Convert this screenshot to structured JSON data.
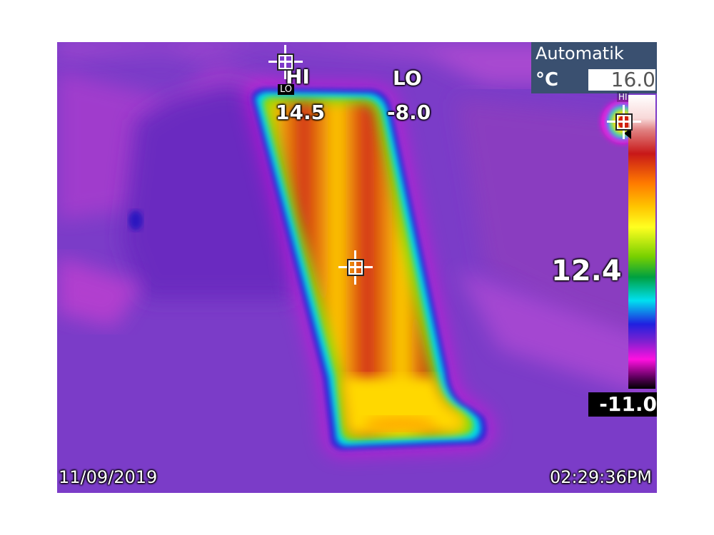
{
  "camera": {
    "mode": "Automatik",
    "unit": "°C",
    "scale_max": "16.0",
    "scale_min": "-11.0",
    "hi_title": "HI",
    "hi_value": "14.5",
    "lo_title": "LO",
    "lo_value": "-8.0",
    "center_value": "12.4",
    "palette_hi_tag": "HI",
    "lo_tag": "LO",
    "date": "11/09/2019",
    "time": "02:29:36PM"
  },
  "icons": {
    "crosshair": "crosshair-icon",
    "marker": "triangle-marker-icon"
  },
  "colors": {
    "background": "#7a3fc6",
    "mode_box": "#3a5070",
    "hot": "#c81818",
    "warm": "#ffd000"
  }
}
